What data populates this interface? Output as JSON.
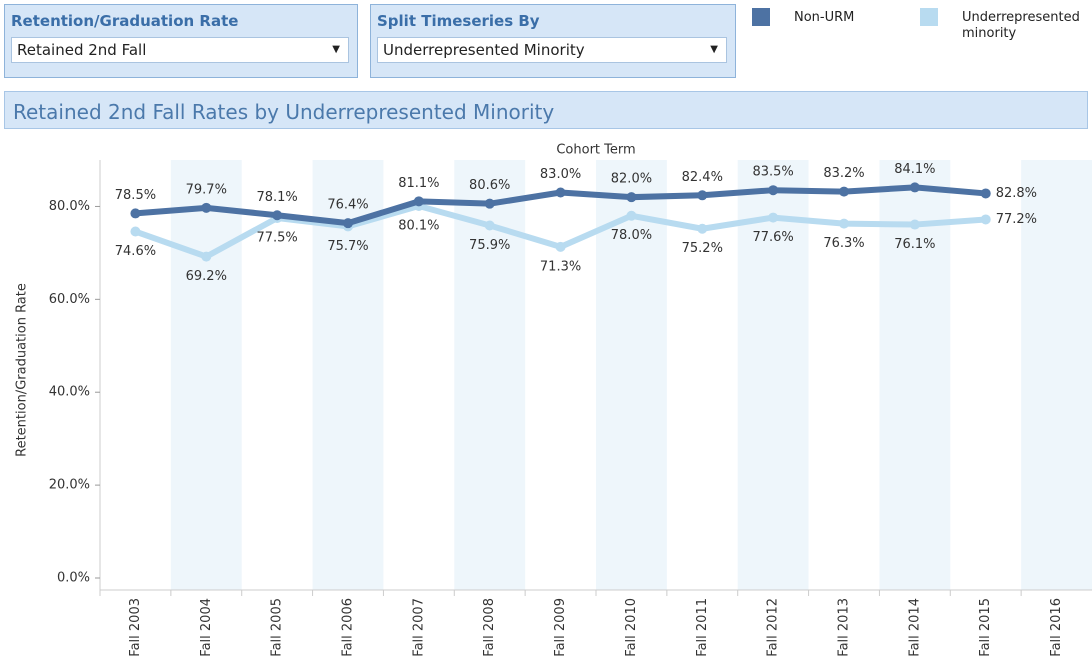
{
  "controls": [
    {
      "label": "Retention/Graduation Rate",
      "selected": "Retained 2nd Fall"
    },
    {
      "label": "Split Timeseries By",
      "selected": "Underrepresented Minority"
    }
  ],
  "chart_data": {
    "type": "line",
    "title": "Retained 2nd Fall Rates by Underrepresented Minority",
    "x_label": "Cohort Term",
    "y_label": "Retention/Graduation Rate",
    "categories": [
      "Fall 2003",
      "Fall 2004",
      "Fall 2005",
      "Fall 2006",
      "Fall 2007",
      "Fall 2008",
      "Fall 2009",
      "Fall 2010",
      "Fall 2011",
      "Fall 2012",
      "Fall 2013",
      "Fall 2014",
      "Fall 2015",
      "Fall 2016"
    ],
    "series": [
      {
        "name": "Non-URM",
        "color": "#4d72a3",
        "values": [
          78.5,
          79.7,
          78.1,
          76.4,
          81.1,
          80.6,
          83.0,
          82.0,
          82.4,
          83.5,
          83.2,
          84.1,
          82.8,
          null
        ],
        "value_labels": [
          "78.5%",
          "79.7%",
          "78.1%",
          "76.4%",
          "81.1%",
          "80.6%",
          "83.0%",
          "82.0%",
          "82.4%",
          "83.5%",
          "83.2%",
          "84.1%",
          "82.8%",
          null
        ]
      },
      {
        "name": "Underrepresented minority",
        "color": "#b8dbf0",
        "values": [
          74.6,
          69.2,
          77.5,
          75.7,
          80.1,
          75.9,
          71.3,
          78.0,
          75.2,
          77.6,
          76.3,
          76.1,
          77.2,
          null
        ],
        "value_labels": [
          "74.6%",
          "69.2%",
          "77.5%",
          "75.7%",
          "80.1%",
          "75.9%",
          "71.3%",
          "78.0%",
          "75.2%",
          "77.6%",
          "76.3%",
          "76.1%",
          "77.2%",
          null
        ]
      }
    ],
    "ylim": [
      0,
      90
    ],
    "yticks": [
      {
        "value": 0,
        "label": "0.0%"
      },
      {
        "value": 20,
        "label": "20.0%"
      },
      {
        "value": 40,
        "label": "40.0%"
      },
      {
        "value": 60,
        "label": "60.0%"
      },
      {
        "value": 80,
        "label": "80.0%"
      }
    ],
    "legend": "top-right",
    "column_banding": true
  }
}
